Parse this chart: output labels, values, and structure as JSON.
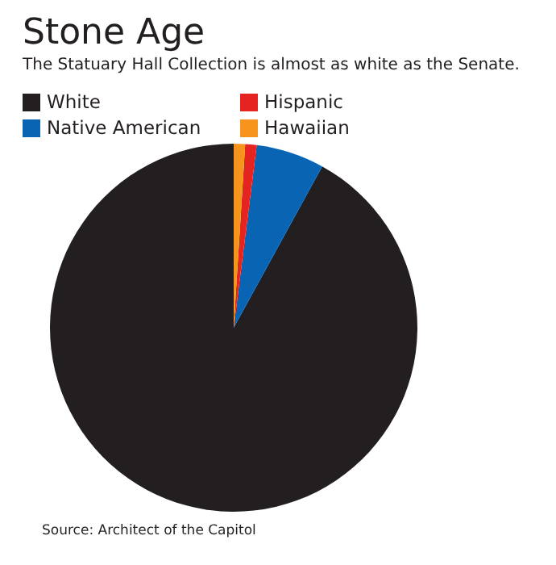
{
  "chart_data": {
    "type": "pie",
    "title": "Stone Age",
    "subtitle": "The Statuary Hall Collection is almost as white as the Senate.",
    "categories": [
      "White",
      "Native American",
      "Hispanic",
      "Hawaiian"
    ],
    "values": [
      92,
      6,
      1,
      1
    ],
    "colors": [
      "#231f20",
      "#0a64b4",
      "#e52421",
      "#f7941d"
    ],
    "legend": "top left",
    "annotations": [
      "Source: Architect of the Capitol"
    ]
  }
}
